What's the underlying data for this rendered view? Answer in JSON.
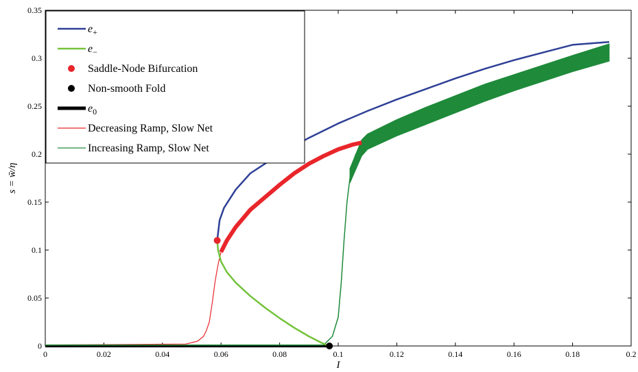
{
  "chart_data": {
    "type": "line",
    "xlabel": "I",
    "ylabel": "s = w̄/η",
    "xlim": [
      0,
      0.2
    ],
    "ylim": [
      0,
      0.35
    ],
    "xticks": [
      "0",
      "0.02",
      "0.04",
      "0.06",
      "0.08",
      "0.1",
      "0.12",
      "0.14",
      "0.16",
      "0.18",
      "0.2"
    ],
    "yticks": [
      "0",
      "0.05",
      "0.1",
      "0.15",
      "0.2",
      "0.25",
      "0.3",
      "0.35"
    ],
    "legend_position": "top-left",
    "grid": false,
    "legend": [
      {
        "label": "e+",
        "main": "e",
        "sub": "+",
        "color": "#2e3f96",
        "kind": "line"
      },
      {
        "label": "e−",
        "main": "e",
        "sub": "−",
        "color": "#73c23a",
        "kind": "line"
      },
      {
        "label": "Saddle-Node Bifurcation",
        "color": "#e8262b",
        "kind": "dot"
      },
      {
        "label": "Non-smooth Fold",
        "color": "#000000",
        "kind": "dot"
      },
      {
        "label": "e0",
        "main": "e",
        "sub": "0",
        "color": "#000000",
        "kind": "thick"
      },
      {
        "label": "Decreasing Ramp, Slow Net",
        "color": "#e8262b",
        "kind": "thin"
      },
      {
        "label": "Increasing Ramp, Slow Net",
        "color": "#1e8a3a",
        "kind": "thin"
      }
    ],
    "series": [
      {
        "name": "e+",
        "color": "#2e3f96",
        "x": [
          0.0587,
          0.0595,
          0.061,
          0.065,
          0.07,
          0.08,
          0.09,
          0.1,
          0.11,
          0.12,
          0.13,
          0.14,
          0.15,
          0.16,
          0.17,
          0.18,
          0.1925
        ],
        "y": [
          0.11,
          0.131,
          0.144,
          0.163,
          0.18,
          0.2,
          0.217,
          0.232,
          0.245,
          0.257,
          0.268,
          0.279,
          0.289,
          0.298,
          0.306,
          0.314,
          0.317
        ]
      },
      {
        "name": "e−",
        "color": "#73c23a",
        "x": [
          0.0587,
          0.059,
          0.06,
          0.062,
          0.065,
          0.07,
          0.075,
          0.08,
          0.085,
          0.09,
          0.0945,
          0.097
        ],
        "y": [
          0.11,
          0.1,
          0.088,
          0.077,
          0.066,
          0.052,
          0.04,
          0.029,
          0.019,
          0.01,
          0.003,
          0.0
        ]
      },
      {
        "name": "e0",
        "color": "#000000",
        "x": [
          0.0,
          0.097
        ],
        "y": [
          0.0,
          0.0
        ]
      },
      {
        "name": "Decreasing Ramp, Slow Net",
        "color": "#e8262b",
        "x": [
          0.0,
          0.048,
          0.052,
          0.054,
          0.055,
          0.056,
          0.057,
          0.058,
          0.059,
          0.06,
          0.062,
          0.065,
          0.07,
          0.075,
          0.08,
          0.085,
          0.09,
          0.095,
          0.1,
          0.105,
          0.108
        ],
        "y": [
          0.001,
          0.002,
          0.005,
          0.01,
          0.016,
          0.025,
          0.045,
          0.068,
          0.085,
          0.098,
          0.11,
          0.124,
          0.142,
          0.155,
          0.168,
          0.18,
          0.19,
          0.198,
          0.205,
          0.21,
          0.212
        ]
      },
      {
        "name": "Increasing Ramp, Slow Net",
        "color": "#1e8a3a",
        "x": [
          0.0,
          0.095,
          0.098,
          0.1,
          0.101,
          0.102,
          0.103,
          0.104,
          0.105,
          0.106,
          0.108,
          0.11,
          0.12,
          0.13,
          0.14,
          0.15,
          0.16,
          0.17,
          0.18,
          0.1925
        ],
        "y": [
          0.001,
          0.001,
          0.01,
          0.03,
          0.065,
          0.11,
          0.15,
          0.175,
          0.19,
          0.2,
          0.208,
          0.214,
          0.228,
          0.24,
          0.252,
          0.263,
          0.274,
          0.284,
          0.293,
          0.304
        ]
      }
    ],
    "band": {
      "name": "Increasing Ramp, Slow Net",
      "color": "#1e8a3a",
      "x": [
        0.104,
        0.108,
        0.11,
        0.12,
        0.13,
        0.14,
        0.15,
        0.16,
        0.17,
        0.18,
        0.1925
      ],
      "lower": [
        0.17,
        0.198,
        0.205,
        0.219,
        0.231,
        0.243,
        0.255,
        0.266,
        0.276,
        0.286,
        0.297
      ],
      "upper": [
        0.185,
        0.215,
        0.221,
        0.236,
        0.249,
        0.261,
        0.273,
        0.283,
        0.293,
        0.303,
        0.315
      ]
    },
    "markers": [
      {
        "name": "Saddle-Node Bifurcation",
        "x": 0.0587,
        "y": 0.11,
        "color": "#e8262b"
      },
      {
        "name": "Non-smooth Fold",
        "x": 0.097,
        "y": 0.0,
        "color": "#000000"
      }
    ]
  }
}
